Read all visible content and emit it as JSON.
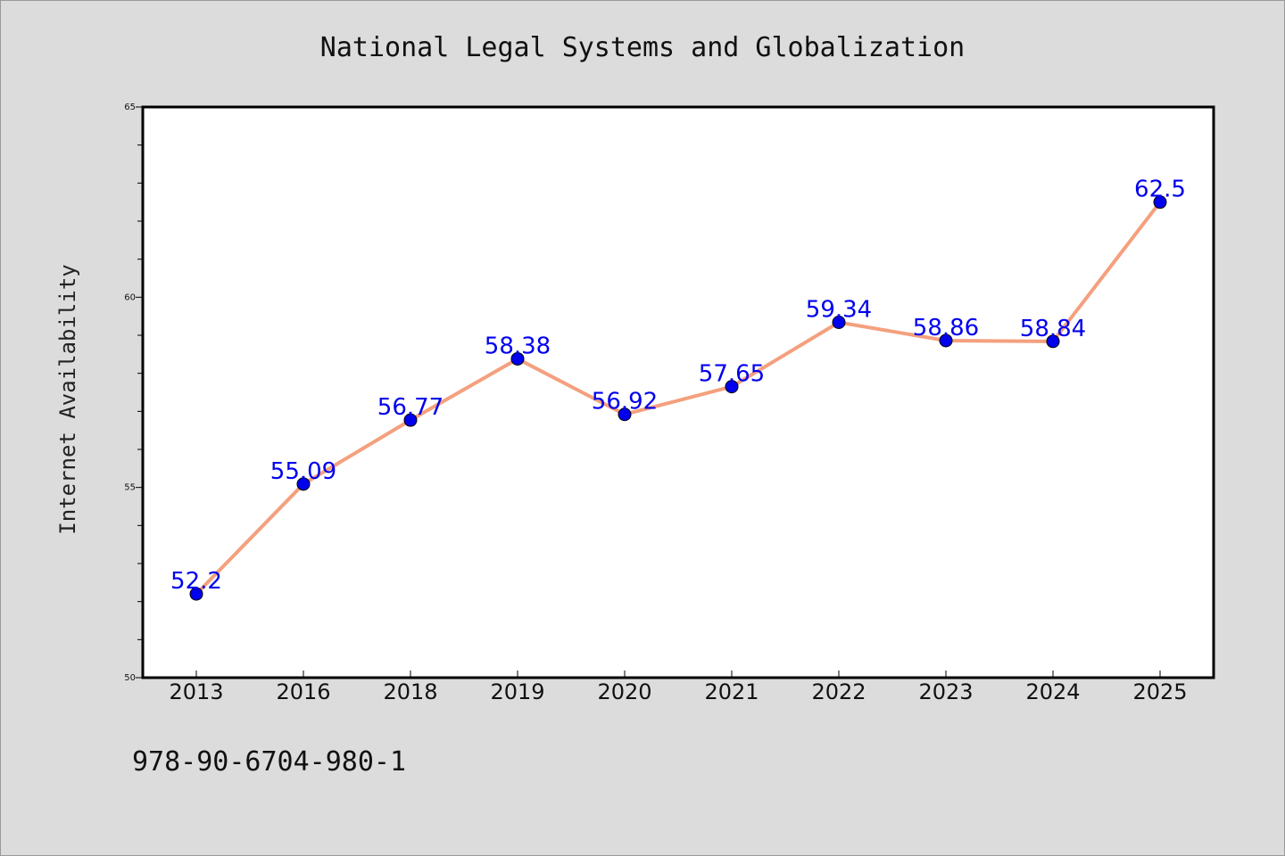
{
  "chart_data": {
    "type": "line",
    "title": "National Legal Systems and Globalization",
    "xlabel": "",
    "ylabel": "Internet Availability",
    "categories": [
      "2013",
      "2016",
      "2018",
      "2019",
      "2020",
      "2021",
      "2022",
      "2023",
      "2024",
      "2025"
    ],
    "series": [
      {
        "values": [
          52.2,
          55.09,
          56.77,
          58.38,
          56.92,
          57.65,
          59.34,
          58.86,
          58.84,
          62.5
        ],
        "labels": [
          "52.2",
          "55.09",
          "56.77",
          "58.38",
          "56.92",
          "57.65",
          "59.34",
          "58.86",
          "58.84",
          "62.5"
        ],
        "line_color": "#f4a07e",
        "marker_color": "#0000ee"
      }
    ],
    "ylim": [
      50,
      65
    ],
    "y_ticks": [
      "50",
      "55",
      "60",
      "65"
    ],
    "grid": false,
    "legend": "none"
  },
  "footer": {
    "isbn": "978-90-6704-980-1"
  },
  "colors": {
    "background": "#dcdcdc",
    "plot_background": "#ffffff",
    "line": "#f4a07e",
    "marker": "#0000ee",
    "data_label": "#0000ee"
  }
}
